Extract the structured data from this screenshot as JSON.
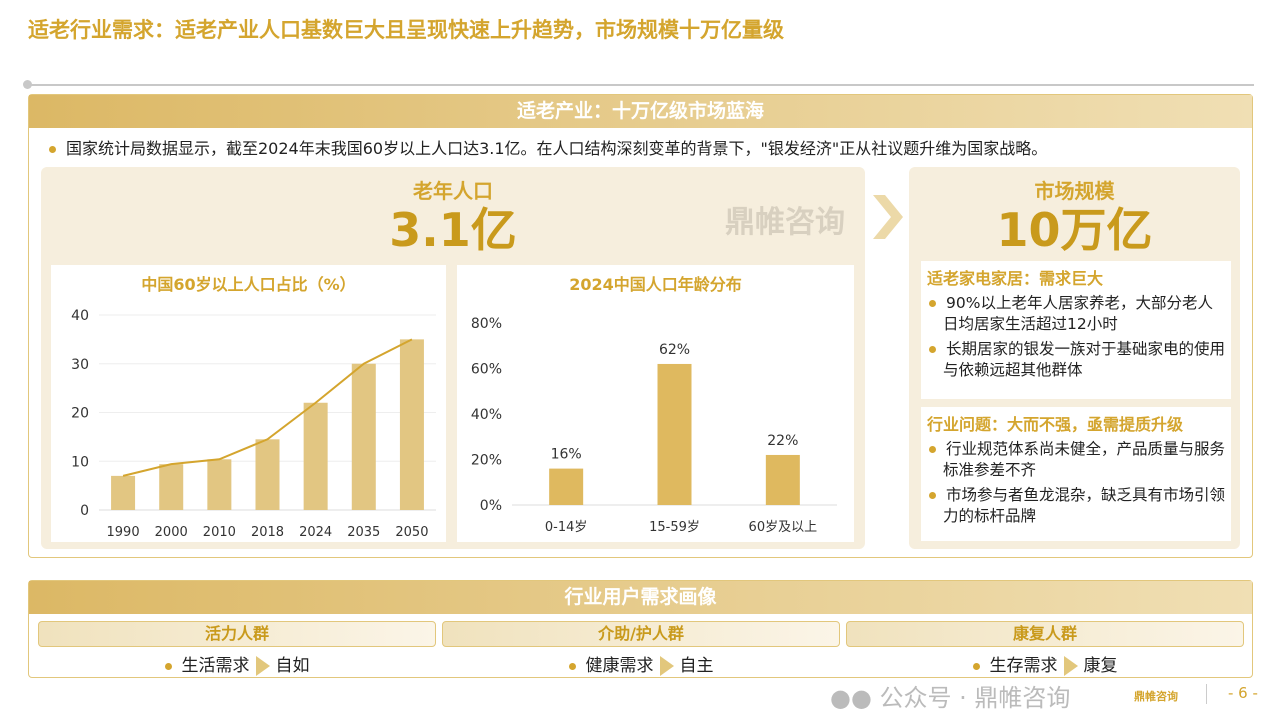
{
  "title": "适老行业需求：适老产业人口基数巨大且呈现快速上升趋势，市场规模十万亿量级",
  "panel": {
    "header": "适老产业：十万亿级市场蓝海",
    "intro": "国家统计局数据显示，截至2024年末我国60岁以上人口达3.1亿。在人口结构深刻变革的背景下，\"银发经济\"正从社议题升维为国家战略。"
  },
  "left": {
    "kpi_label": "老年人口",
    "kpi_value": "3.1亿"
  },
  "right": {
    "kpi_label": "市场规模",
    "kpi_value": "10万亿",
    "sections": [
      {
        "heading": "适老家电家居：需求巨大",
        "points": [
          "90%以上老年人居家养老，大部分老人日均居家生活超过12小时",
          "长期居家的银发一族对于基础家电的使用与依赖远超其他群体"
        ]
      },
      {
        "heading": "行业问题：大而不强，亟需提质升级",
        "points": [
          "行业规范体系尚未健全，产品质量与服务标准参差不齐",
          "市场参与者鱼龙混杂，缺乏具有市场引领力的标杆品牌"
        ]
      }
    ]
  },
  "chart_data": [
    {
      "type": "bar",
      "title": "中国60岁以上人口占比（%）",
      "categories": [
        "1990",
        "2000",
        "2010",
        "2018",
        "2024",
        "2035",
        "2050"
      ],
      "values": [
        7,
        9.4,
        10.4,
        14.5,
        22,
        30,
        35
      ],
      "line_overlay": true,
      "ylim": [
        0,
        40
      ],
      "yticks": [
        "0",
        "10",
        "20",
        "30",
        "40"
      ],
      "grid": true,
      "color": "#e2c682",
      "line_color": "#d4a52e"
    },
    {
      "type": "bar",
      "title": "2024中国人口年龄分布",
      "categories": [
        "0-14岁",
        "15-59岁",
        "60岁及以上"
      ],
      "values": [
        16,
        62,
        22
      ],
      "data_labels": [
        "16%",
        "62%",
        "22%"
      ],
      "ylim": [
        0,
        80
      ],
      "yticks": [
        "0%",
        "20%",
        "40%",
        "60%",
        "80%"
      ],
      "grid": false,
      "color": "#dfb95f"
    }
  ],
  "watermark": "鼎帷咨询",
  "bottom": {
    "header": "行业用户需求画像",
    "groups": [
      {
        "name": "活力人群",
        "need": "生活需求",
        "goal": "自如"
      },
      {
        "name": "介助/护人群",
        "need": "健康需求",
        "goal": "自主"
      },
      {
        "name": "康复人群",
        "need": "生存需求",
        "goal": "康复"
      }
    ]
  },
  "footer": {
    "wechat": "公众号 · 鼎帷咨询",
    "logo": "鼎帷咨询",
    "page": "- 6 -"
  }
}
